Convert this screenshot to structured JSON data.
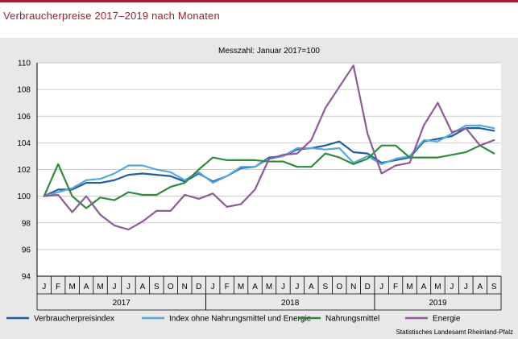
{
  "title": "Verbraucherpreise 2017–2019 nach Monaten",
  "source": "Statistisches Landesamt Rheinland-Pfalz",
  "colors": {
    "title": "#9a2031",
    "vpi": "#1f5fa0",
    "ohne": "#5aa8d8",
    "nahrung": "#2e8b3a",
    "energie": "#8f5a9a"
  },
  "chart_data": {
    "type": "line",
    "title": "Messzahl: Januar 2017=100",
    "xlabel": "",
    "ylabel": "",
    "ylim": [
      94,
      110
    ],
    "yticks": [
      94,
      96,
      98,
      100,
      102,
      104,
      106,
      108,
      110
    ],
    "grid": true,
    "legend_position": "bottom",
    "categories": [
      "J",
      "F",
      "M",
      "A",
      "M",
      "J",
      "J",
      "A",
      "S",
      "O",
      "N",
      "D",
      "J",
      "F",
      "M",
      "A",
      "M",
      "J",
      "J",
      "A",
      "S",
      "O",
      "N",
      "D",
      "J",
      "F",
      "M",
      "A",
      "M",
      "J",
      "J",
      "A",
      "S"
    ],
    "year_labels": [
      {
        "label": "2017",
        "start": 0,
        "end": 11
      },
      {
        "label": "2018",
        "start": 12,
        "end": 23
      },
      {
        "label": "2019",
        "start": 24,
        "end": 32
      }
    ],
    "series": [
      {
        "name": "Verbraucherpreisindex",
        "color_key": "vpi",
        "values": [
          100.0,
          100.5,
          100.5,
          101.0,
          101.0,
          101.2,
          101.6,
          101.7,
          101.6,
          101.5,
          101.1,
          101.7,
          101.1,
          101.5,
          102.1,
          102.2,
          102.9,
          103.0,
          103.5,
          103.6,
          103.8,
          104.1,
          103.3,
          103.2,
          102.5,
          102.7,
          102.9,
          104.1,
          104.3,
          104.5,
          105.1,
          105.1,
          104.9
        ]
      },
      {
        "name": "Index ohne Nahrungsmittel und Energie",
        "color_key": "ohne",
        "values": [
          100.0,
          100.3,
          100.6,
          101.2,
          101.3,
          101.7,
          102.3,
          102.3,
          102.0,
          101.8,
          101.2,
          101.8,
          101.0,
          101.5,
          102.2,
          102.2,
          102.8,
          103.0,
          103.6,
          103.6,
          103.5,
          103.6,
          102.5,
          103.0,
          102.4,
          102.8,
          103.0,
          104.2,
          104.1,
          104.7,
          105.3,
          105.3,
          105.1
        ]
      },
      {
        "name": "Nahrungsmittel",
        "color_key": "nahrung",
        "values": [
          100.0,
          102.4,
          100.0,
          99.1,
          99.9,
          99.7,
          100.3,
          100.1,
          100.1,
          100.7,
          101.0,
          102.0,
          102.9,
          102.7,
          102.7,
          102.7,
          102.6,
          102.6,
          102.2,
          102.2,
          103.2,
          102.9,
          102.4,
          102.8,
          103.8,
          103.8,
          102.9,
          102.9,
          102.9,
          103.1,
          103.3,
          103.8,
          103.2
        ]
      },
      {
        "name": "Energie",
        "color_key": "energie",
        "values": [
          100.0,
          100.1,
          98.8,
          100.0,
          98.6,
          97.8,
          97.5,
          98.1,
          98.9,
          98.9,
          100.1,
          99.8,
          100.2,
          99.2,
          99.4,
          100.5,
          102.8,
          103.1,
          103.2,
          104.2,
          106.6,
          108.2,
          109.8,
          104.7,
          101.7,
          102.3,
          102.5,
          105.3,
          107.0,
          104.8,
          105.1,
          103.8,
          104.2
        ]
      }
    ]
  }
}
